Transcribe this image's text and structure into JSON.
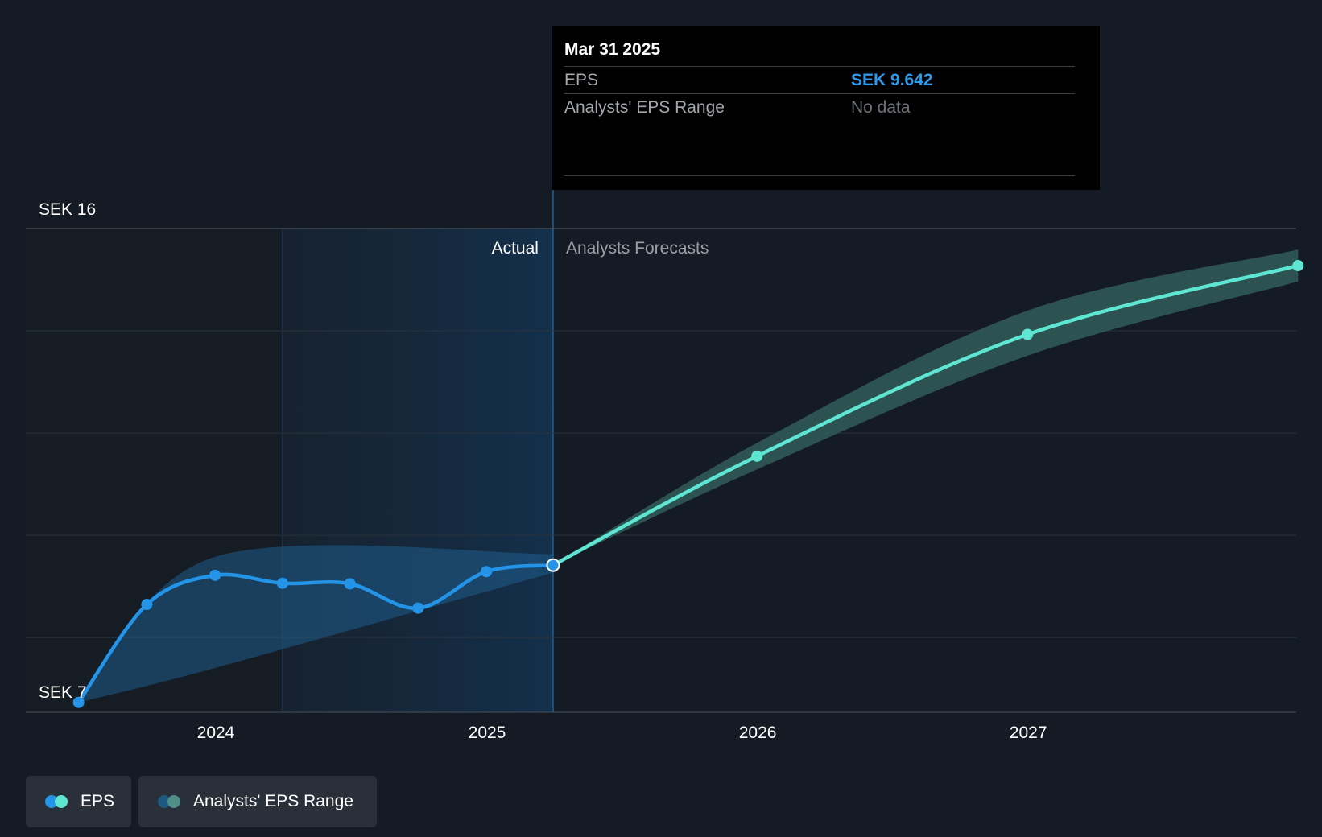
{
  "tooltip": {
    "date": "Mar 31 2025",
    "rows": [
      {
        "label": "EPS",
        "value": "SEK 9.642"
      },
      {
        "label": "Analysts' EPS Range",
        "value": "No data"
      }
    ]
  },
  "legend": {
    "eps": "EPS",
    "range": "Analysts' EPS Range"
  },
  "colors": {
    "actual": "#2394e8",
    "forecast": "#5ee6d2",
    "forecast_band": "#2f5a57",
    "value_text": "#2f9ae9",
    "nodata_text": "#6d7278"
  },
  "chart_data": {
    "type": "line",
    "y_axis_labels": [
      "SEK 16",
      "SEK 7"
    ],
    "ylim": [
      7,
      16
    ],
    "x_ticks": [
      "2024",
      "2025",
      "2026",
      "2027"
    ],
    "section_labels": {
      "actual": "Actual",
      "forecast": "Analysts Forecasts"
    },
    "series": [
      {
        "name": "EPS",
        "segment": "actual",
        "x": [
          "2023-06-30",
          "2023-09-30",
          "2023-12-31",
          "2024-03-31",
          "2024-06-30",
          "2024-09-30",
          "2024-12-31",
          "2025-03-31"
        ],
        "y": [
          7.05,
          8.9,
          9.45,
          9.3,
          9.29,
          8.83,
          9.52,
          9.642
        ]
      },
      {
        "name": "EPS",
        "segment": "forecast",
        "x": [
          "2025-03-31",
          "2025-12-31",
          "2026-12-31",
          "2027-12-31"
        ],
        "y": [
          9.642,
          11.7,
          14.0,
          15.3
        ]
      }
    ],
    "actual_band": {
      "x": [
        "2023-06-30",
        "2023-12-31",
        "2025-03-31"
      ],
      "low": [
        7.05,
        7.7,
        9.5
      ],
      "high": [
        7.05,
        9.8,
        9.85
      ]
    },
    "forecast_band": {
      "x": [
        "2025-03-31",
        "2025-12-31",
        "2026-12-31",
        "2027-12-31"
      ],
      "low": [
        9.642,
        11.45,
        13.6,
        15.0
      ],
      "high": [
        9.642,
        11.95,
        14.45,
        15.6
      ]
    },
    "tooltip_date": "2025-03-31",
    "grid": true
  }
}
